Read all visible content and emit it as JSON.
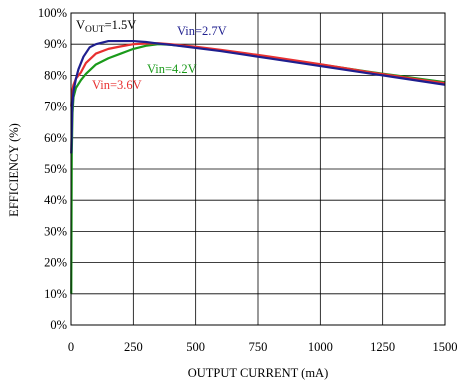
{
  "chart_data": {
    "type": "line",
    "xlabel": "OUTPUT CURRENT (mA)",
    "ylabel": "EFFICIENCY (%)",
    "xlim": [
      0,
      1500
    ],
    "ylim": [
      0,
      100
    ],
    "x_ticks": [
      "0",
      "250",
      "500",
      "750",
      "1000",
      "1250",
      "1500"
    ],
    "y_ticks": [
      "0%",
      "10%",
      "20%",
      "30%",
      "40%",
      "50%",
      "60%",
      "70%",
      "80%",
      "90%",
      "100%"
    ],
    "grid": true,
    "annotation": {
      "prefix": "V",
      "subscript": "OUT",
      "suffix": "=1.5V"
    },
    "series": [
      {
        "name": "Vin=2.7V",
        "color": "#1f1f8f",
        "x": [
          1,
          5,
          10,
          20,
          30,
          50,
          75,
          100,
          150,
          200,
          250,
          300,
          350,
          400,
          500,
          600,
          700,
          800,
          900,
          1000,
          1100,
          1200,
          1300,
          1400,
          1500
        ],
        "y": [
          55,
          70,
          75,
          79,
          82,
          86,
          89,
          90,
          91,
          91,
          91,
          90.7,
          90.2,
          89.8,
          88.8,
          87.8,
          86.6,
          85.4,
          84.2,
          83.0,
          81.8,
          80.6,
          79.4,
          78.2,
          77.0
        ]
      },
      {
        "name": "Vin=3.6V",
        "color": "#e83030",
        "x": [
          1,
          5,
          10,
          20,
          40,
          60,
          100,
          150,
          200,
          250,
          300,
          350,
          400,
          500,
          600,
          700,
          800,
          900,
          1000,
          1100,
          1200,
          1300,
          1400,
          1500
        ],
        "y": [
          70,
          75,
          77,
          79,
          81,
          84,
          87,
          88.5,
          89.3,
          90,
          90.2,
          90.3,
          90,
          89.2,
          88.2,
          87.1,
          86.0,
          84.8,
          83.6,
          82.3,
          81.0,
          79.8,
          78.6,
          77.5
        ]
      },
      {
        "name": "Vin=4.2V",
        "color": "#1a9a1a",
        "x": [
          1,
          3,
          6,
          10,
          20,
          40,
          60,
          100,
          150,
          200,
          250,
          300,
          350,
          400,
          500,
          600,
          700,
          800,
          900,
          1000,
          1100,
          1200,
          1300,
          1400,
          1500
        ],
        "y": [
          10,
          55,
          68,
          73,
          76,
          78.5,
          80.5,
          83.5,
          85.5,
          87,
          88.5,
          89.5,
          90,
          89.8,
          89.0,
          88.0,
          86.9,
          85.8,
          84.6,
          83.5,
          82.3,
          81.1,
          80.0,
          78.9,
          77.8
        ]
      }
    ]
  }
}
